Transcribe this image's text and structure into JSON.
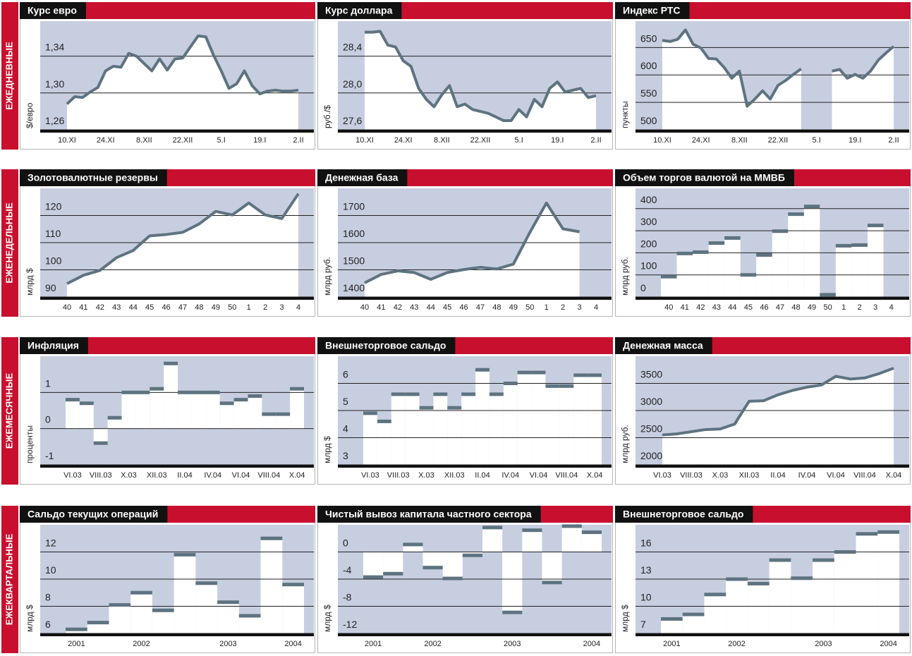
{
  "row_labels": [
    "ЕЖЕДНЕВНЫЕ",
    "ЕЖЕНЕДЕЛЬНЫЕ",
    "ЕЖЕМЕСЯЧНЫЕ",
    "ЕЖЕКВАРТАЛЬНЫЕ"
  ],
  "chart_data": [
    {
      "type": "line",
      "title": "Курс евро",
      "y_label": "$/евро",
      "color": "#5e7380",
      "categories": [
        "10.XI",
        null,
        null,
        null,
        null,
        "24.XI",
        null,
        null,
        null,
        null,
        "8.XII",
        null,
        null,
        null,
        null,
        "22.XII",
        null,
        null,
        null,
        null,
        "5.I",
        null,
        null,
        null,
        null,
        "19.I",
        null,
        null,
        null,
        null,
        "2.II"
      ],
      "values": [
        1.288,
        1.296,
        1.295,
        1.301,
        1.306,
        1.324,
        1.329,
        1.328,
        1.343,
        1.34,
        1.332,
        1.324,
        1.337,
        1.325,
        1.337,
        1.338,
        1.35,
        1.362,
        1.361,
        1.341,
        1.324,
        1.305,
        1.31,
        1.324,
        1.308,
        1.299,
        1.302,
        1.303,
        1.302,
        1.302,
        1.303
      ],
      "ylim": [
        1.26,
        1.378
      ],
      "yticks": [
        {
          "value": 1.26,
          "label": "1,26"
        },
        {
          "value": 1.3,
          "label": "1,30"
        },
        {
          "value": 1.34,
          "label": "1,34"
        }
      ]
    },
    {
      "type": "line",
      "title": "Курс доллара",
      "y_label": "руб./$",
      "color": "#5e7380",
      "categories": [
        "10.XI",
        null,
        null,
        null,
        null,
        "24.XI",
        null,
        null,
        null,
        null,
        "8.XII",
        null,
        null,
        null,
        null,
        "22.XII",
        null,
        null,
        null,
        null,
        "5.I",
        null,
        null,
        null,
        null,
        "19.I",
        null,
        null,
        null,
        null,
        "2.II"
      ],
      "values": [
        28.66,
        28.66,
        28.67,
        28.52,
        28.5,
        28.35,
        28.29,
        28.05,
        27.93,
        27.85,
        27.98,
        28.08,
        27.85,
        27.88,
        27.82,
        27.8,
        27.78,
        27.74,
        27.7,
        27.7,
        27.82,
        27.74,
        27.93,
        27.85,
        28.05,
        28.12,
        28.01,
        28.03,
        28.05,
        27.95,
        27.97
      ],
      "ylim": [
        27.6,
        28.78
      ],
      "yticks": [
        {
          "value": 27.6,
          "label": "27,6"
        },
        {
          "value": 28.0,
          "label": "28,0"
        },
        {
          "value": 28.4,
          "label": "28,4"
        }
      ]
    },
    {
      "type": "line",
      "title": "Индекс РТС",
      "y_label": "пункты",
      "color": "#5e7380",
      "categories": [
        "10.XI",
        null,
        null,
        null,
        null,
        "24.XI",
        null,
        null,
        null,
        null,
        "8.XII",
        null,
        null,
        null,
        null,
        "22.XII",
        null,
        null,
        null,
        null,
        "5.I",
        null,
        null,
        null,
        null,
        "19.I",
        null,
        null,
        null,
        null,
        "2.II"
      ],
      "values": [
        663,
        661,
        665,
        682,
        656,
        649,
        630,
        629,
        614,
        594,
        607,
        543,
        556,
        571,
        556,
        581,
        590,
        601,
        611,
        null,
        null,
        null,
        607,
        610,
        594,
        601,
        594,
        607,
        627,
        640,
        652
      ],
      "ylim": [
        500,
        698
      ],
      "yticks": [
        500,
        550,
        600,
        650
      ]
    },
    {
      "type": "line",
      "title": "Золотовалютные резервы",
      "y_label": "млрд $",
      "color": "#5e7380",
      "categories": [
        "40",
        "41",
        "42",
        "43",
        "44",
        "45",
        "46",
        "47",
        "48",
        "49",
        "50",
        "1",
        "2",
        "3",
        "4"
      ],
      "values": [
        94.9,
        98.0,
        99.8,
        104.5,
        107.1,
        112.5,
        113.0,
        113.8,
        116.9,
        121.5,
        120.2,
        124.6,
        120.2,
        118.9,
        128.0
      ],
      "ylim": [
        90,
        130
      ],
      "yticks": [
        90,
        100,
        110,
        120
      ]
    },
    {
      "type": "line",
      "title": "Денежная база",
      "y_label": "млрд руб.",
      "color": "#5e7380",
      "categories": [
        "40",
        "41",
        "42",
        "43",
        "44",
        "45",
        "46",
        "47",
        "48",
        "49",
        "50",
        "1",
        "2",
        "3",
        "4"
      ],
      "values": [
        1452,
        1483,
        1496,
        1490,
        1465,
        1490,
        1501,
        1509,
        1503,
        1521,
        1638,
        1746,
        1651,
        1640,
        null
      ],
      "ylim": [
        1400,
        1800
      ],
      "yticks": [
        1400,
        1500,
        1600,
        1700
      ]
    },
    {
      "type": "bar",
      "title": "Объем торгов валютой на ММВБ",
      "y_label": "млрд руб.",
      "color": "#5e7380",
      "categories": [
        "40",
        "41",
        "42",
        "43",
        "44",
        "45",
        "46",
        "47",
        "48",
        "49",
        "50",
        "1",
        "2",
        "3",
        "4"
      ],
      "values": [
        92,
        197,
        203,
        244,
        267,
        100,
        190,
        298,
        375,
        410,
        10,
        232,
        235,
        324,
        null
      ],
      "ylim": [
        0,
        492
      ],
      "yticks": [
        0,
        100,
        200,
        300,
        400
      ]
    },
    {
      "type": "bar",
      "title": "Инфляция",
      "y_label": "проценты",
      "color": "#5e7380",
      "categories": [
        "VI.03",
        null,
        "VIII.03",
        null,
        "X.03",
        null,
        "XII.03",
        null,
        "II.04",
        null,
        "IV.04",
        null,
        "VI.04",
        null,
        "VIII.04",
        null,
        "X.04"
      ],
      "values": [
        0.8,
        0.7,
        -0.4,
        0.3,
        1.0,
        1.0,
        1.1,
        1.8,
        1.0,
        1.0,
        1.0,
        0.7,
        0.8,
        0.9,
        0.4,
        0.4,
        1.1
      ],
      "ylim": [
        -1,
        2
      ],
      "yticks": [
        -1,
        0,
        1
      ]
    },
    {
      "type": "bar",
      "title": "Внешнеторговое сальдо",
      "y_label": "млрд $",
      "color": "#5e7380",
      "categories": [
        "VI.03",
        null,
        "VIII.03",
        null,
        "X.03",
        null,
        "XII.03",
        null,
        "II.04",
        null,
        "IV.04",
        null,
        "VI.04",
        null,
        "VIII.04",
        null,
        "X.04"
      ],
      "values": [
        4.9,
        4.6,
        5.6,
        5.6,
        5.1,
        5.6,
        5.1,
        5.6,
        6.5,
        5.6,
        6.0,
        6.4,
        6.4,
        5.9,
        5.9,
        6.3,
        6.3
      ],
      "ylim": [
        3,
        7
      ],
      "yticks": [
        3,
        4,
        5,
        6
      ]
    },
    {
      "type": "line",
      "title": "Денежная масса",
      "y_label": "млрд руб.",
      "color": "#5e7380",
      "categories": [
        "VI.03",
        null,
        "VIII.03",
        null,
        "X.03",
        null,
        "XII.03",
        null,
        "II.04",
        null,
        "IV.04",
        null,
        "VI.04",
        null,
        "VIII.04",
        null,
        "X.04"
      ],
      "values": [
        2550,
        2570,
        2610,
        2650,
        2660,
        2750,
        3170,
        3180,
        3290,
        3370,
        3430,
        3470,
        3630,
        3580,
        3600,
        3680,
        3780
      ],
      "ylim": [
        2000,
        4000
      ],
      "yticks": [
        2000,
        2500,
        3000,
        3500
      ]
    },
    {
      "type": "bar",
      "title": "Сальдо текущих операций",
      "y_label": "млрд $",
      "color": "#5e7380",
      "categories": [
        "2001",
        null,
        null,
        "2002",
        null,
        null,
        null,
        "2003",
        null,
        null,
        "2004"
      ],
      "values": [
        6.3,
        6.8,
        8.1,
        9.0,
        7.7,
        11.8,
        9.7,
        8.3,
        7.3,
        13.0,
        9.6
      ],
      "ylim": [
        6,
        14
      ],
      "yticks": [
        6,
        8,
        10,
        12
      ]
    },
    {
      "type": "bar",
      "title": "Чистый вывоз капитала частного сектора",
      "y_label": "млрд $",
      "color": "#5e7380",
      "categories": [
        "2001",
        null,
        null,
        "2002",
        null,
        null,
        null,
        "2003",
        null,
        null,
        null,
        "2004"
      ],
      "values": [
        -3.7,
        -3.2,
        1.1,
        -2.3,
        -3.9,
        -0.5,
        3.6,
        -8.9,
        3.2,
        -4.5,
        3.8,
        2.9
      ],
      "ylim": [
        -12,
        4
      ],
      "yticks": [
        -12,
        -8,
        -4,
        0
      ]
    },
    {
      "type": "bar",
      "title": "Внешнеторговое сальдо",
      "y_label": "млрд $",
      "color": "#5e7380",
      "categories": [
        "2001",
        null,
        null,
        "2002",
        null,
        null,
        null,
        "2003",
        null,
        null,
        "2004"
      ],
      "values": [
        8.6,
        9.1,
        11.3,
        13.0,
        12.5,
        15.1,
        13.1,
        15.1,
        16.0,
        18.0,
        18.2
      ],
      "ylim": [
        7,
        19
      ],
      "yticks": [
        7,
        10,
        13,
        16
      ]
    }
  ]
}
